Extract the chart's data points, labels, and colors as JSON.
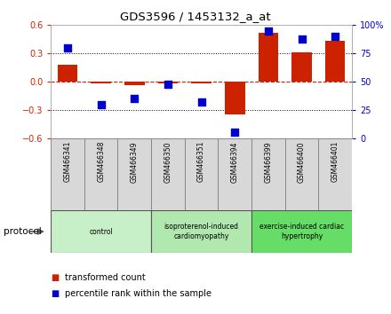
{
  "title": "GDS3596 / 1453132_a_at",
  "samples": [
    "GSM466341",
    "GSM466348",
    "GSM466349",
    "GSM466350",
    "GSM466351",
    "GSM466394",
    "GSM466399",
    "GSM466400",
    "GSM466401"
  ],
  "transformed_count": [
    0.18,
    -0.02,
    -0.04,
    -0.02,
    -0.02,
    -0.35,
    0.52,
    0.31,
    0.43
  ],
  "percentile_rank": [
    80,
    30,
    35,
    48,
    32,
    5,
    95,
    88,
    90
  ],
  "groups": [
    {
      "label": "control",
      "start": 0,
      "end": 3,
      "color": "#c8f0c8"
    },
    {
      "label": "isoproterenol-induced\ncardiomyopathy",
      "start": 3,
      "end": 6,
      "color": "#b0e8b0"
    },
    {
      "label": "exercise-induced cardiac\nhypertrophy",
      "start": 6,
      "end": 9,
      "color": "#66dd66"
    }
  ],
  "bar_color": "#cc2200",
  "dot_color": "#0000cc",
  "ylim_left": [
    -0.6,
    0.6
  ],
  "ylim_right": [
    0,
    100
  ],
  "yticks_left": [
    -0.6,
    -0.3,
    0.0,
    0.3,
    0.6
  ],
  "yticks_right": [
    0,
    25,
    50,
    75,
    100
  ],
  "ytick_labels_right": [
    "0",
    "25",
    "50",
    "75",
    "100%"
  ],
  "hlines_dotted": [
    -0.3,
    0.3
  ],
  "hline_dashed": 0.0,
  "background_color": "#ffffff",
  "plot_bg": "#ffffff",
  "legend_items": [
    {
      "label": "transformed count",
      "color": "#cc2200"
    },
    {
      "label": "percentile rank within the sample",
      "color": "#0000cc"
    }
  ],
  "sample_box_color": "#d8d8d8",
  "protocol_label": "protocol"
}
